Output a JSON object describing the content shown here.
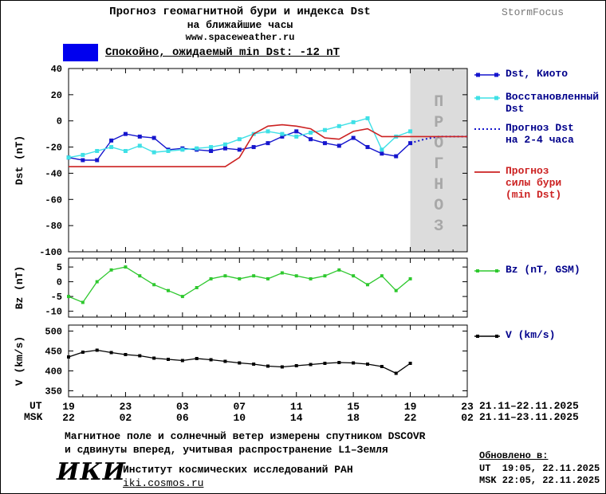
{
  "header": {
    "title_line1": "Прогноз геомагнитной бури и индекса Dst",
    "title_line2": "на ближайшие часы",
    "title_line3": "www.spaceweather.ru",
    "brand": "StormFocus"
  },
  "status": {
    "label": "Спокойно, ожидаемый min Dst: -12 nT",
    "swatch_color": "#0000ee"
  },
  "legend": {
    "dst_kyoto": "Dst, Киото",
    "recovered": "Восстановленный\nDst",
    "forecast_dst": "Прогноз Dst\nна 2-4 часа",
    "forecast_storm": "Прогноз\nсилы бури\n(min Dst)",
    "bz": "Bz (nT, GSM)",
    "v": "V (km/s)"
  },
  "axes": {
    "dst_label": "Dst (nT)",
    "bz_label": "Bz (nT)",
    "v_label": "V (km/s)",
    "ut_label": "UT",
    "msk_label": "MSK",
    "x_ticks_hours": [
      0,
      4,
      8,
      12,
      16,
      20,
      24,
      28
    ],
    "ut_ticks": [
      "19",
      "23",
      "03",
      "07",
      "11",
      "15",
      "19",
      "23"
    ],
    "msk_ticks": [
      "22",
      "02",
      "06",
      "10",
      "14",
      "18",
      "22",
      "02"
    ],
    "ut_range": "21.11–22.11.2025",
    "msk_range": "21.11–23.11.2025",
    "forecast_watermark": "ПРОГНОЗ"
  },
  "colors": {
    "forecast_band": "#dcdcdc",
    "watermark": "#a8a8a8",
    "dst_kyoto": "#1515cd",
    "recovered": "#3fe0e6",
    "forecast_dst": "#1515cd",
    "forecast_storm": "#cc2222",
    "bz": "#2ec82e",
    "v": "#000000"
  },
  "chart_data": [
    {
      "type": "line",
      "title": "Dst index, measured and forecast",
      "ylabel": "Dst (nT)",
      "ylim": [
        -100,
        40
      ],
      "yticks": [
        40,
        20,
        0,
        -20,
        -40,
        -60,
        -80,
        -100
      ],
      "xlim_hours": [
        0,
        28
      ],
      "forecast_region_hours": [
        24,
        28
      ],
      "series": [
        {
          "id": "kyoto",
          "name": "Dst, Киото",
          "color": "#1515cd",
          "marker": "square",
          "marker_size": 5,
          "x": [
            0,
            1,
            2,
            3,
            4,
            5,
            6,
            7,
            8,
            9,
            10,
            11,
            12,
            13,
            14,
            15,
            16,
            17,
            18,
            19,
            20,
            21,
            22,
            23,
            24
          ],
          "y": [
            -28,
            -30,
            -30,
            -15,
            -10,
            -12,
            -13,
            -22,
            -21,
            -22,
            -23,
            -21,
            -22,
            -20,
            -17,
            -12,
            -8,
            -14,
            -17,
            -19,
            -13,
            -20,
            -25,
            -27,
            -17
          ]
        },
        {
          "id": "recovered",
          "name": "Восстановленный Dst",
          "color": "#3fe0e6",
          "marker": "square",
          "marker_size": 5,
          "x": [
            0,
            1,
            2,
            3,
            4,
            5,
            6,
            7,
            8,
            9,
            10,
            11,
            12,
            13,
            14,
            15,
            16,
            17,
            18,
            19,
            20,
            21,
            22,
            23,
            24
          ],
          "y": [
            -28,
            -26,
            -23,
            -20,
            -23,
            -19,
            -24,
            -23,
            -22,
            -21,
            -20,
            -18,
            -14,
            -10,
            -8,
            -10,
            -12,
            -9,
            -7,
            -4,
            -1,
            2,
            -22,
            -12,
            -8
          ]
        },
        {
          "id": "forecast_dst",
          "name": "Прогноз Dst на 2-4 часа",
          "color": "#1515cd",
          "style": "dotted",
          "width": 2,
          "x": [
            24,
            25,
            26,
            27,
            28
          ],
          "y": [
            -17,
            -14,
            -12,
            -12,
            -12
          ]
        },
        {
          "id": "storm",
          "name": "Прогноз силы бури (min Dst)",
          "color": "#cc2222",
          "width": 1.6,
          "x": [
            0,
            1,
            2,
            3,
            4,
            5,
            6,
            7,
            8,
            9,
            10,
            11,
            12,
            13,
            14,
            15,
            16,
            17,
            18,
            19,
            20,
            21,
            22,
            23,
            24,
            25,
            26,
            27,
            28
          ],
          "y": [
            -35,
            -35,
            -35,
            -35,
            -35,
            -35,
            -35,
            -35,
            -35,
            -35,
            -35,
            -35,
            -28,
            -10,
            -4,
            -3,
            -4,
            -6,
            -13,
            -14,
            -8,
            -6,
            -12,
            -12,
            -12,
            -12,
            -12,
            -12,
            -12
          ]
        }
      ]
    },
    {
      "type": "line",
      "title": "Bz GSM",
      "ylabel": "Bz (nT)",
      "ylim": [
        -12,
        8
      ],
      "yticks": [
        5,
        0,
        -5,
        -10
      ],
      "xlim_hours": [
        0,
        28
      ],
      "series": [
        {
          "id": "bz",
          "name": "Bz (nT, GSM)",
          "color": "#2ec82e",
          "marker": "square",
          "marker_size": 4,
          "width": 1.3,
          "x": [
            0,
            1,
            2,
            3,
            4,
            5,
            6,
            7,
            8,
            9,
            10,
            11,
            12,
            13,
            14,
            15,
            16,
            17,
            18,
            19,
            20,
            21,
            22,
            23,
            24
          ],
          "y": [
            -5,
            -7,
            0,
            4,
            5,
            2,
            -1,
            -3,
            -5,
            -2,
            1,
            2,
            1,
            2,
            1,
            3,
            2,
            1,
            2,
            4,
            2,
            -1,
            2,
            -3,
            1
          ]
        }
      ]
    },
    {
      "type": "line",
      "title": "Solar wind speed",
      "ylabel": "V (km/s)",
      "ylim": [
        335,
        515
      ],
      "yticks": [
        500,
        450,
        400,
        350
      ],
      "xlim_hours": [
        0,
        28
      ],
      "series": [
        {
          "id": "v",
          "name": "V (km/s)",
          "color": "#000000",
          "marker": "square",
          "marker_size": 4,
          "width": 1.3,
          "x": [
            0,
            1,
            2,
            3,
            4,
            5,
            6,
            7,
            8,
            9,
            10,
            11,
            12,
            13,
            14,
            15,
            16,
            17,
            18,
            19,
            20,
            21,
            22,
            23,
            24
          ],
          "y": [
            435,
            447,
            452,
            446,
            441,
            438,
            432,
            429,
            426,
            431,
            428,
            424,
            420,
            417,
            412,
            410,
            413,
            416,
            419,
            421,
            420,
            417,
            411,
            394,
            419
          ]
        }
      ]
    }
  ],
  "footer": {
    "note_line1": "Магнитное поле и солнечный ветер измерены спутником DSCOVR",
    "note_line2": "и сдвинуты вперед, учитывая распространение L1–Земля",
    "updated_label": "Обновлено в:",
    "updated_ut": "UT  19:05, 22.11.2025",
    "updated_msk": "MSK 22:05, 22.11.2025",
    "org_abbr": "ИКИ",
    "org_name": "Институт космических исследований РАН",
    "org_site": "iki.cosmos.ru"
  }
}
